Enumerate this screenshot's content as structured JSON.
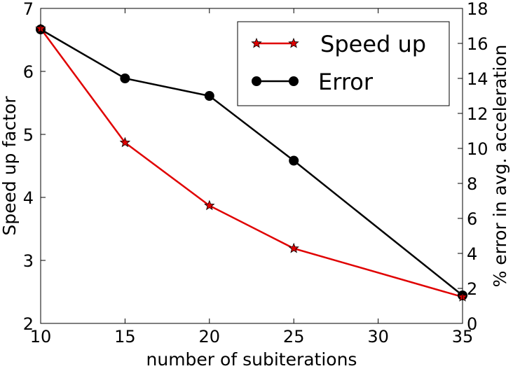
{
  "chart_data": {
    "type": "line",
    "x": [
      10,
      15,
      20,
      25,
      35
    ],
    "xlabel": "number of subiterations",
    "ylabel_left": "Speed up factor",
    "ylabel_right": "% error in avg. acceleration",
    "xlim": [
      10,
      35
    ],
    "ylim_left": [
      2,
      7
    ],
    "ylim_right": [
      0,
      18
    ],
    "x_ticks": [
      10,
      15,
      20,
      25,
      30,
      35
    ],
    "y_ticks_left": [
      2,
      3,
      4,
      5,
      6,
      7
    ],
    "y_ticks_right": [
      0,
      2,
      4,
      6,
      8,
      10,
      12,
      14,
      16,
      18
    ],
    "grid": false,
    "legend_position": "top-right",
    "series": [
      {
        "name": "Speed up",
        "axis": "left",
        "color": "#e00000",
        "marker": "star",
        "values": [
          6.68,
          4.87,
          3.87,
          3.19,
          2.42
        ]
      },
      {
        "name": "Error",
        "axis": "right",
        "color": "#000000",
        "marker": "circle",
        "values": [
          16.8,
          14.0,
          13.0,
          9.3,
          1.6
        ]
      }
    ]
  }
}
